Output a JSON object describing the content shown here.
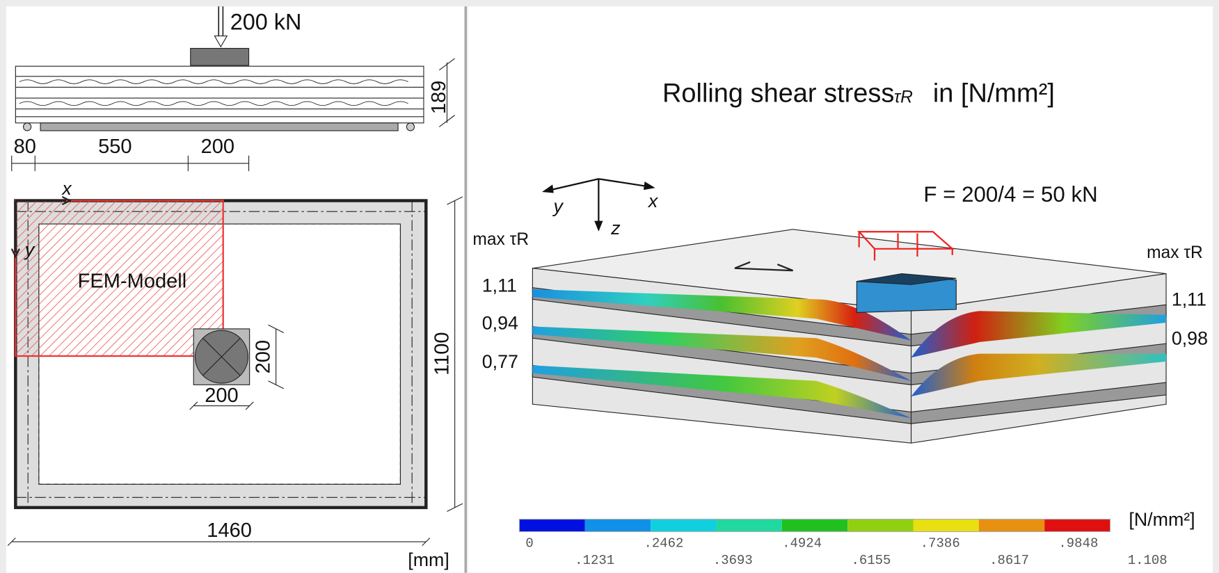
{
  "left": {
    "load": "200 kN",
    "height_dim": "189",
    "dims_top": [
      "80",
      "550",
      "200"
    ],
    "axis_x": "x",
    "axis_y": "y",
    "model_label": "FEM-Modell",
    "plate_dim_v": "200",
    "plate_dim_h": "200",
    "width_dim": "1100",
    "length_dim": "1460",
    "unit": "[mm]"
  },
  "right": {
    "title": "Rolling shear stress",
    "title_symbol": "τR",
    "title_unit": "in [N/mm²]",
    "axes": {
      "y": "y",
      "x": "x",
      "z": "z"
    },
    "force": "F = 200/4 = 50 kN",
    "max_left": "max τR",
    "max_right": "max τR",
    "left_values": [
      "1,11",
      "0,94",
      "0,77"
    ],
    "right_values": [
      "1,11",
      "0,98"
    ],
    "colorbar": {
      "unit": "[N/mm²]",
      "labels": [
        "0",
        ".1231",
        ".2462",
        ".3693",
        ".4924",
        ".6155",
        ".7386",
        ".8617",
        ".9848",
        "1.108"
      ]
    }
  }
}
